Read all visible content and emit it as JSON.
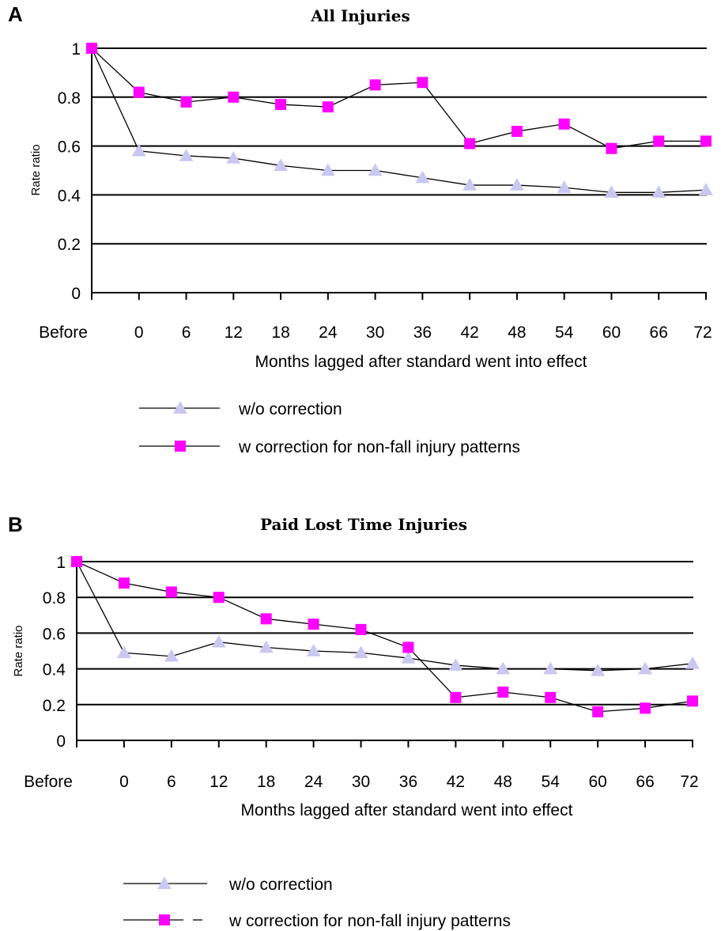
{
  "chart_data": [
    {
      "type": "line",
      "panel_label": "A",
      "title": "All Injuries",
      "xlabel": "Months lagged after standard went into effect",
      "ylabel": "Rate ratio",
      "categories": [
        "Before",
        "0",
        "6",
        "12",
        "18",
        "24",
        "30",
        "36",
        "42",
        "48",
        "54",
        "60",
        "66",
        "72"
      ],
      "ylim": [
        0,
        1
      ],
      "yticks": [
        "0",
        "0.2",
        "0.4",
        "0.6",
        "0.8",
        "1"
      ],
      "grid": "horizontal",
      "legend_position": "bottom",
      "series": [
        {
          "name": "w/o correction",
          "marker": "triangle",
          "color": "#c8c8f0",
          "values": [
            1.0,
            0.58,
            0.56,
            0.55,
            0.52,
            0.5,
            0.5,
            0.47,
            0.44,
            0.44,
            0.43,
            0.41,
            0.41,
            0.42
          ]
        },
        {
          "name": "w correction for non-fall injury patterns",
          "marker": "square",
          "color": "#ff00ff",
          "values": [
            1.0,
            0.82,
            0.78,
            0.8,
            0.77,
            0.76,
            0.85,
            0.86,
            0.61,
            0.66,
            0.69,
            0.59,
            0.62,
            0.62
          ]
        }
      ]
    },
    {
      "type": "line",
      "panel_label": "B",
      "title": "Paid Lost Time Injuries",
      "xlabel": "Months lagged after standard went into effect",
      "ylabel": "Rate ratio",
      "categories": [
        "Before",
        "0",
        "6",
        "12",
        "18",
        "24",
        "30",
        "36",
        "42",
        "48",
        "54",
        "60",
        "66",
        "72"
      ],
      "ylim": [
        0,
        1
      ],
      "yticks": [
        "0",
        "0.2",
        "0.4",
        "0.6",
        "0.8",
        "1"
      ],
      "grid": "horizontal",
      "legend_position": "bottom",
      "series": [
        {
          "name": "w/o correction",
          "marker": "triangle",
          "color": "#c8c8f0",
          "values": [
            1.0,
            0.49,
            0.47,
            0.55,
            0.52,
            0.5,
            0.49,
            0.46,
            0.42,
            0.4,
            0.4,
            0.39,
            0.4,
            0.43
          ]
        },
        {
          "name": "w correction for non-fall injury patterns",
          "marker": "square",
          "color": "#ff00ff",
          "values": [
            1.0,
            0.88,
            0.83,
            0.8,
            0.68,
            0.65,
            0.62,
            0.52,
            0.24,
            0.27,
            0.24,
            0.16,
            0.18,
            0.22
          ]
        }
      ]
    }
  ]
}
